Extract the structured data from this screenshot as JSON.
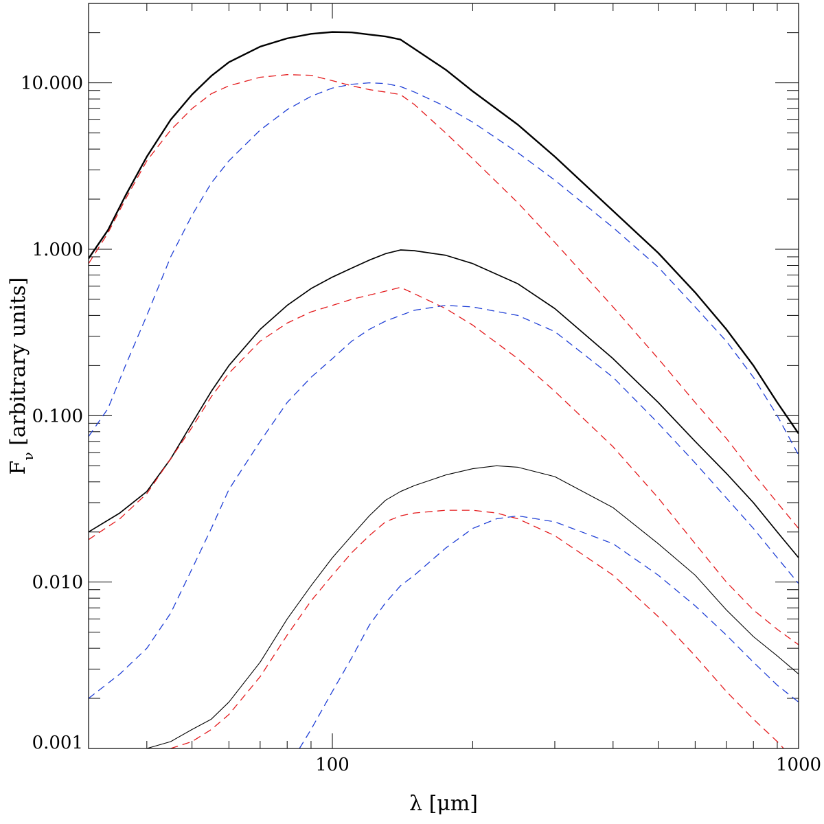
{
  "chart_data": {
    "type": "line",
    "title": "",
    "xlabel": "λ [μm]",
    "ylabel": "Fν [arbitrary units]",
    "ylabel_main": "F",
    "ylabel_sub": "ν",
    "ylabel_rest": " [arbitrary units]",
    "xscale": "log",
    "yscale": "log",
    "xlim": [
      30,
      1000
    ],
    "ylim": [
      0.001,
      30
    ],
    "xticks": [
      100,
      1000
    ],
    "xtick_labels": [
      "100",
      "1000"
    ],
    "yticks": [
      0.001,
      0.01,
      0.1,
      1,
      10
    ],
    "ytick_labels": [
      "0.001",
      "0.010",
      "0.100",
      "1.000",
      "10.000"
    ],
    "grid": false,
    "legend": "none",
    "colors": {
      "total": "#000000",
      "warm": "#e41a1c",
      "cold": "#1f3fd6"
    },
    "series": [
      {
        "group": "top",
        "component": "total",
        "style": "solid",
        "color": "#000000",
        "width": 2.4,
        "points": [
          [
            30,
            0.88
          ],
          [
            33,
            1.3
          ],
          [
            36,
            2.1
          ],
          [
            40,
            3.6
          ],
          [
            45,
            6.0
          ],
          [
            50,
            8.5
          ],
          [
            55,
            11.0
          ],
          [
            60,
            13.3
          ],
          [
            70,
            16.5
          ],
          [
            80,
            18.5
          ],
          [
            90,
            19.7
          ],
          [
            100,
            20.2
          ],
          [
            110,
            20.1
          ],
          [
            120,
            19.5
          ],
          [
            130,
            19.0
          ],
          [
            140,
            18.2
          ],
          [
            150,
            16.0
          ],
          [
            175,
            12.0
          ],
          [
            200,
            8.9
          ],
          [
            250,
            5.6
          ],
          [
            300,
            3.6
          ],
          [
            400,
            1.7
          ],
          [
            500,
            0.95
          ],
          [
            600,
            0.55
          ],
          [
            700,
            0.33
          ],
          [
            800,
            0.2
          ],
          [
            900,
            0.12
          ],
          [
            1000,
            0.078
          ]
        ]
      },
      {
        "group": "top",
        "component": "warm",
        "style": "dashed",
        "color": "#e41a1c",
        "width": 1.3,
        "points": [
          [
            30,
            0.82
          ],
          [
            33,
            1.25
          ],
          [
            36,
            2.0
          ],
          [
            40,
            3.4
          ],
          [
            45,
            5.2
          ],
          [
            50,
            7.0
          ],
          [
            55,
            8.6
          ],
          [
            60,
            9.6
          ],
          [
            70,
            10.8
          ],
          [
            80,
            11.2
          ],
          [
            90,
            11.1
          ],
          [
            100,
            10.3
          ],
          [
            110,
            9.6
          ],
          [
            120,
            9.1
          ],
          [
            130,
            8.8
          ],
          [
            140,
            8.5
          ],
          [
            150,
            7.4
          ],
          [
            175,
            5.0
          ],
          [
            200,
            3.5
          ],
          [
            250,
            1.9
          ],
          [
            300,
            1.1
          ],
          [
            400,
            0.45
          ],
          [
            500,
            0.22
          ],
          [
            600,
            0.12
          ],
          [
            700,
            0.073
          ],
          [
            800,
            0.045
          ],
          [
            900,
            0.03
          ],
          [
            1000,
            0.021
          ]
        ]
      },
      {
        "group": "top",
        "component": "cold",
        "style": "dashed",
        "color": "#1f3fd6",
        "width": 1.3,
        "points": [
          [
            30,
            0.075
          ],
          [
            33,
            0.11
          ],
          [
            36,
            0.2
          ],
          [
            40,
            0.4
          ],
          [
            45,
            0.9
          ],
          [
            50,
            1.6
          ],
          [
            55,
            2.5
          ],
          [
            60,
            3.4
          ],
          [
            70,
            5.2
          ],
          [
            80,
            6.9
          ],
          [
            90,
            8.3
          ],
          [
            100,
            9.3
          ],
          [
            110,
            9.8
          ],
          [
            120,
            10.0
          ],
          [
            130,
            9.9
          ],
          [
            140,
            9.5
          ],
          [
            150,
            8.8
          ],
          [
            175,
            7.2
          ],
          [
            200,
            5.8
          ],
          [
            250,
            3.8
          ],
          [
            300,
            2.6
          ],
          [
            400,
            1.35
          ],
          [
            500,
            0.78
          ],
          [
            600,
            0.45
          ],
          [
            700,
            0.28
          ],
          [
            800,
            0.17
          ],
          [
            900,
            0.1
          ],
          [
            1000,
            0.058
          ]
        ]
      },
      {
        "group": "middle",
        "component": "total",
        "style": "solid",
        "color": "#000000",
        "width": 1.7,
        "points": [
          [
            30,
            0.02
          ],
          [
            35,
            0.026
          ],
          [
            40,
            0.035
          ],
          [
            45,
            0.055
          ],
          [
            50,
            0.09
          ],
          [
            55,
            0.14
          ],
          [
            60,
            0.2
          ],
          [
            70,
            0.33
          ],
          [
            80,
            0.46
          ],
          [
            90,
            0.58
          ],
          [
            100,
            0.68
          ],
          [
            110,
            0.77
          ],
          [
            120,
            0.86
          ],
          [
            130,
            0.94
          ],
          [
            140,
            0.99
          ],
          [
            150,
            0.98
          ],
          [
            175,
            0.92
          ],
          [
            200,
            0.82
          ],
          [
            250,
            0.62
          ],
          [
            300,
            0.44
          ],
          [
            400,
            0.22
          ],
          [
            500,
            0.12
          ],
          [
            600,
            0.07
          ],
          [
            700,
            0.045
          ],
          [
            800,
            0.03
          ],
          [
            900,
            0.02
          ],
          [
            1000,
            0.014
          ]
        ]
      },
      {
        "group": "middle",
        "component": "warm",
        "style": "dashed",
        "color": "#e41a1c",
        "width": 1.3,
        "points": [
          [
            30,
            0.018
          ],
          [
            35,
            0.024
          ],
          [
            40,
            0.034
          ],
          [
            45,
            0.055
          ],
          [
            50,
            0.085
          ],
          [
            55,
            0.13
          ],
          [
            60,
            0.18
          ],
          [
            70,
            0.28
          ],
          [
            80,
            0.36
          ],
          [
            90,
            0.42
          ],
          [
            100,
            0.46
          ],
          [
            110,
            0.5
          ],
          [
            120,
            0.53
          ],
          [
            130,
            0.56
          ],
          [
            140,
            0.59
          ],
          [
            150,
            0.54
          ],
          [
            175,
            0.44
          ],
          [
            200,
            0.35
          ],
          [
            250,
            0.22
          ],
          [
            300,
            0.14
          ],
          [
            400,
            0.065
          ],
          [
            500,
            0.032
          ],
          [
            600,
            0.017
          ],
          [
            700,
            0.01
          ],
          [
            800,
            0.0068
          ],
          [
            900,
            0.0052
          ],
          [
            1000,
            0.0042
          ]
        ]
      },
      {
        "group": "middle",
        "component": "cold",
        "style": "dashed",
        "color": "#1f3fd6",
        "width": 1.3,
        "points": [
          [
            30,
            0.002
          ],
          [
            35,
            0.0028
          ],
          [
            40,
            0.004
          ],
          [
            45,
            0.0065
          ],
          [
            50,
            0.012
          ],
          [
            55,
            0.021
          ],
          [
            60,
            0.036
          ],
          [
            70,
            0.07
          ],
          [
            80,
            0.12
          ],
          [
            90,
            0.17
          ],
          [
            100,
            0.22
          ],
          [
            110,
            0.28
          ],
          [
            120,
            0.33
          ],
          [
            130,
            0.37
          ],
          [
            140,
            0.4
          ],
          [
            150,
            0.43
          ],
          [
            175,
            0.46
          ],
          [
            200,
            0.45
          ],
          [
            250,
            0.4
          ],
          [
            300,
            0.32
          ],
          [
            400,
            0.17
          ],
          [
            500,
            0.09
          ],
          [
            600,
            0.052
          ],
          [
            700,
            0.032
          ],
          [
            800,
            0.021
          ],
          [
            900,
            0.014
          ],
          [
            1000,
            0.0098
          ]
        ]
      },
      {
        "group": "bottom",
        "component": "total",
        "style": "solid",
        "color": "#000000",
        "width": 1.1,
        "points": [
          [
            40,
            0.001
          ],
          [
            45,
            0.0011
          ],
          [
            50,
            0.0013
          ],
          [
            55,
            0.0015
          ],
          [
            60,
            0.0019
          ],
          [
            70,
            0.0033
          ],
          [
            80,
            0.006
          ],
          [
            90,
            0.0095
          ],
          [
            100,
            0.014
          ],
          [
            110,
            0.019
          ],
          [
            120,
            0.025
          ],
          [
            130,
            0.031
          ],
          [
            140,
            0.035
          ],
          [
            150,
            0.038
          ],
          [
            175,
            0.044
          ],
          [
            200,
            0.048
          ],
          [
            225,
            0.05
          ],
          [
            250,
            0.049
          ],
          [
            300,
            0.043
          ],
          [
            400,
            0.028
          ],
          [
            500,
            0.017
          ],
          [
            600,
            0.011
          ],
          [
            700,
            0.0068
          ],
          [
            800,
            0.0047
          ],
          [
            900,
            0.0036
          ],
          [
            1000,
            0.0028
          ]
        ]
      },
      {
        "group": "bottom",
        "component": "warm",
        "style": "dashed",
        "color": "#e41a1c",
        "width": 1.3,
        "points": [
          [
            45,
            0.001
          ],
          [
            50,
            0.0011
          ],
          [
            55,
            0.0013
          ],
          [
            60,
            0.0016
          ],
          [
            70,
            0.0027
          ],
          [
            80,
            0.0048
          ],
          [
            90,
            0.0077
          ],
          [
            100,
            0.011
          ],
          [
            110,
            0.015
          ],
          [
            120,
            0.019
          ],
          [
            130,
            0.023
          ],
          [
            140,
            0.025
          ],
          [
            150,
            0.026
          ],
          [
            175,
            0.027
          ],
          [
            200,
            0.027
          ],
          [
            225,
            0.026
          ],
          [
            250,
            0.024
          ],
          [
            300,
            0.019
          ],
          [
            400,
            0.011
          ],
          [
            500,
            0.0062
          ],
          [
            600,
            0.0036
          ],
          [
            700,
            0.0022
          ],
          [
            800,
            0.0015
          ],
          [
            900,
            0.0011
          ],
          [
            1000,
            0.0008
          ]
        ]
      },
      {
        "group": "bottom",
        "component": "cold",
        "style": "dashed",
        "color": "#1f3fd6",
        "width": 1.3,
        "points": [
          [
            85,
            0.001
          ],
          [
            90,
            0.0013
          ],
          [
            100,
            0.0022
          ],
          [
            110,
            0.0035
          ],
          [
            120,
            0.0055
          ],
          [
            130,
            0.0075
          ],
          [
            140,
            0.0095
          ],
          [
            150,
            0.011
          ],
          [
            175,
            0.016
          ],
          [
            200,
            0.021
          ],
          [
            225,
            0.024
          ],
          [
            250,
            0.025
          ],
          [
            300,
            0.023
          ],
          [
            400,
            0.017
          ],
          [
            500,
            0.011
          ],
          [
            600,
            0.0072
          ],
          [
            700,
            0.0048
          ],
          [
            800,
            0.0033
          ],
          [
            900,
            0.0024
          ],
          [
            1000,
            0.0019
          ]
        ]
      }
    ]
  }
}
